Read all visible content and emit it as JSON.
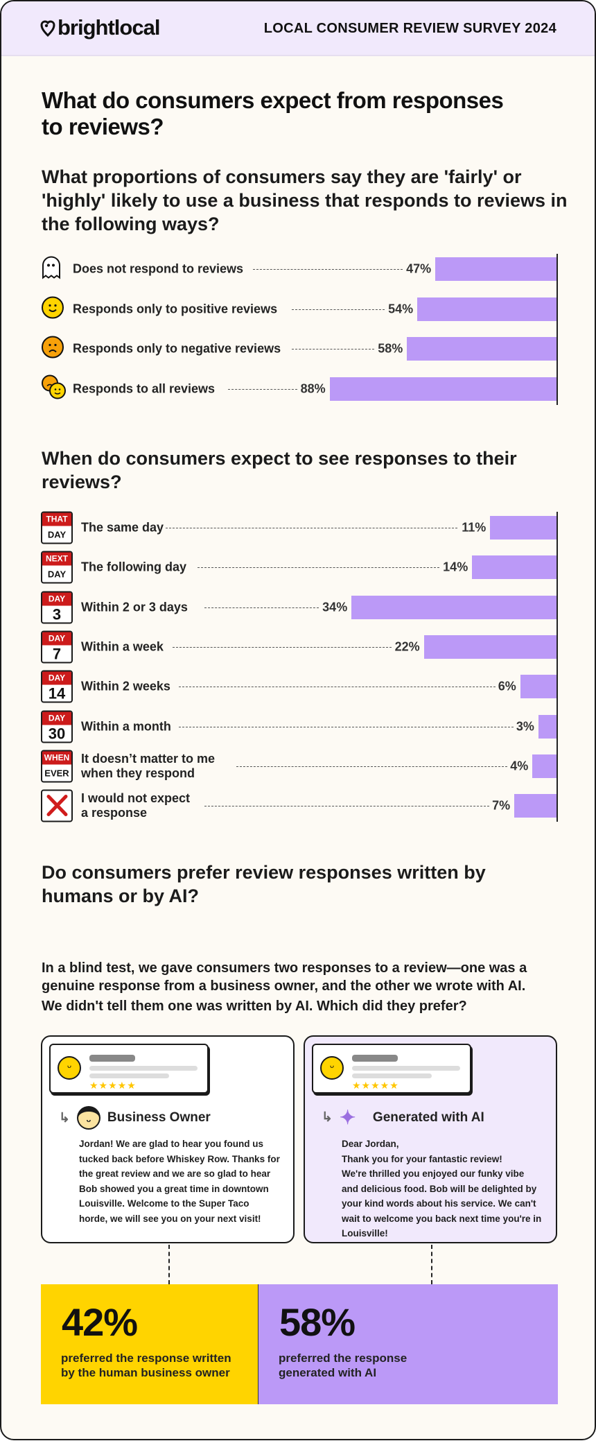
{
  "header": {
    "brand": "brightlocal",
    "title": "LOCAL CONSUMER REVIEW SURVEY 2024"
  },
  "main_heading": "What do consumers expect from responses to reviews?",
  "colors": {
    "bar": "#bb99f7",
    "yellow": "#ffd400",
    "calendar_red": "#cc1b1b",
    "header_bg": "#f1e9fc"
  },
  "chart_data": [
    {
      "type": "bar",
      "orientation": "horizontal",
      "title": "What proportions of consumers say they are 'fairly' or 'highly' likely to use a business that responds to reviews in the following ways?",
      "categories": [
        "Does not respond to reviews",
        "Responds only to positive reviews",
        "Responds only to negative reviews",
        "Responds to all reviews"
      ],
      "values": [
        47,
        54,
        58,
        88
      ],
      "value_labels": [
        "47%",
        "54%",
        "58%",
        "88%"
      ],
      "icons": [
        "ghost-icon",
        "smiley-face-icon",
        "frowning-face-icon",
        "mixed-faces-icon"
      ]
    },
    {
      "type": "bar",
      "orientation": "horizontal",
      "title": "When do consumers expect to see responses to their reviews?",
      "categories": [
        "The same day",
        "The following day",
        "Within 2 or 3 days",
        "Within a week",
        "Within 2 weeks",
        "Within a month",
        "It doesn’t matter to me when they respond",
        "I would not expect a response"
      ],
      "label_lines": [
        [
          "The same day"
        ],
        [
          "The following day"
        ],
        [
          "Within 2 or 3 days"
        ],
        [
          "Within a week"
        ],
        [
          "Within 2 weeks"
        ],
        [
          "Within a month"
        ],
        [
          "It doesn’t matter to me",
          "when they respond"
        ],
        [
          "I would not expect",
          "a response"
        ]
      ],
      "values": [
        11,
        14,
        34,
        22,
        6,
        3,
        4,
        7
      ],
      "value_labels": [
        "11%",
        "14%",
        "34%",
        "22%",
        "6%",
        "3%",
        "4%",
        "7%"
      ],
      "calendar_icons": [
        [
          "THAT",
          "DAY"
        ],
        [
          "NEXT",
          "DAY"
        ],
        [
          "DAY",
          "3"
        ],
        [
          "DAY",
          "7"
        ],
        [
          "DAY",
          "14"
        ],
        [
          "DAY",
          "30"
        ],
        [
          "WHEN",
          "EVER"
        ],
        null
      ]
    }
  ],
  "ai_section": {
    "heading": "Do consumers prefer review responses written by humans or by AI?",
    "intro": "In a blind test, we gave consumers two responses to a review—one was a genuine response from a business owner, and the other we wrote with AI.",
    "question": "We didn't tell them one was written by AI. Which did they prefer?",
    "cards": [
      {
        "author": "Business Owner",
        "text": "Jordan! We are glad to hear you found us tucked back before Whiskey Row. Thanks for the great review and we are so glad to hear Bob showed you a great time in downtown Louisville. Welcome to the Super Taco horde, we will see you on your next visit!",
        "stars": "★★★★★"
      },
      {
        "author": "Generated with AI",
        "text_lines": [
          "Dear Jordan,",
          "Thank you for your fantastic review!",
          "We're thrilled you enjoyed our funky vibe and delicious food. Bob will be delighted by your kind words about his service. We can't wait to welcome you back next time you're in Louisville!"
        ],
        "stars": "★★★★★"
      }
    ],
    "results": [
      {
        "value": "42%",
        "caption": "preferred the response written by the human business owner"
      },
      {
        "value": "58%",
        "caption": "preferred the response generated with AI"
      }
    ]
  }
}
